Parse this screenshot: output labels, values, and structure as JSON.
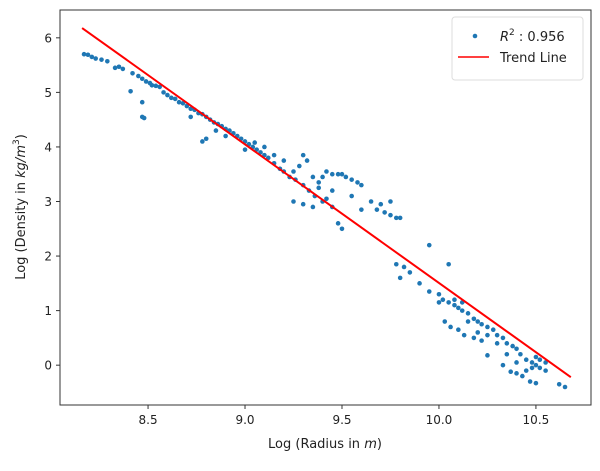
{
  "chart_data": {
    "type": "scatter",
    "title": "",
    "xlabel_prefix": "Log (Radius in ",
    "xlabel_var": "m",
    "xlabel_suffix": ")",
    "ylabel_prefix": "Log (Density in ",
    "ylabel_var": "kg/m",
    "ylabel_sup": "3",
    "ylabel_suffix": ")",
    "xlim": [
      8.046,
      10.784
    ],
    "ylim": [
      -0.73,
      6.51
    ],
    "xticks": [
      8.5,
      9.0,
      9.5,
      10.0,
      10.5
    ],
    "xtick_labels": [
      "8.5",
      "9.0",
      "9.5",
      "10.0",
      "10.5"
    ],
    "yticks": [
      0,
      1,
      2,
      3,
      4,
      5,
      6
    ],
    "ytick_labels": [
      "0",
      "1",
      "2",
      "3",
      "4",
      "5",
      "6"
    ],
    "grid": false,
    "legend": {
      "placement": "top-right",
      "scatter_label_var": "R",
      "scatter_label_sup": "2",
      "scatter_label_rest": " : 0.956",
      "line_label": "Trend Line"
    },
    "colors": {
      "points": "#1f77b4",
      "trend": "#ff0000"
    },
    "trend_line": {
      "x": [
        8.16,
        10.68
      ],
      "y": [
        6.18,
        -0.22
      ]
    },
    "points": [
      [
        8.17,
        5.7
      ],
      [
        8.19,
        5.69
      ],
      [
        8.21,
        5.65
      ],
      [
        8.23,
        5.62
      ],
      [
        8.26,
        5.6
      ],
      [
        8.29,
        5.57
      ],
      [
        8.33,
        5.45
      ],
      [
        8.35,
        5.47
      ],
      [
        8.37,
        5.43
      ],
      [
        8.42,
        5.35
      ],
      [
        8.45,
        5.3
      ],
      [
        8.47,
        5.25
      ],
      [
        8.49,
        5.2
      ],
      [
        8.51,
        5.17
      ],
      [
        8.52,
        5.13
      ],
      [
        8.54,
        5.12
      ],
      [
        8.56,
        5.1
      ],
      [
        8.41,
        5.02
      ],
      [
        8.47,
        4.82
      ],
      [
        8.47,
        4.55
      ],
      [
        8.48,
        4.53
      ],
      [
        8.58,
        5.0
      ],
      [
        8.6,
        4.95
      ],
      [
        8.62,
        4.9
      ],
      [
        8.64,
        4.88
      ],
      [
        8.66,
        4.82
      ],
      [
        8.68,
        4.8
      ],
      [
        8.7,
        4.75
      ],
      [
        8.72,
        4.7
      ],
      [
        8.74,
        4.68
      ],
      [
        8.76,
        4.62
      ],
      [
        8.78,
        4.6
      ],
      [
        8.8,
        4.55
      ],
      [
        8.82,
        4.5
      ],
      [
        8.84,
        4.45
      ],
      [
        8.86,
        4.42
      ],
      [
        8.88,
        4.38
      ],
      [
        8.9,
        4.33
      ],
      [
        8.92,
        4.3
      ],
      [
        8.94,
        4.25
      ],
      [
        8.96,
        4.2
      ],
      [
        8.98,
        4.15
      ],
      [
        9.0,
        4.1
      ],
      [
        9.02,
        4.05
      ],
      [
        9.04,
        4.0
      ],
      [
        9.06,
        3.95
      ],
      [
        9.08,
        3.9
      ],
      [
        9.1,
        3.85
      ],
      [
        9.12,
        3.8
      ],
      [
        9.15,
        3.7
      ],
      [
        9.18,
        3.6
      ],
      [
        9.2,
        3.55
      ],
      [
        9.23,
        3.45
      ],
      [
        9.26,
        3.4
      ],
      [
        9.3,
        3.3
      ],
      [
        9.33,
        3.2
      ],
      [
        9.36,
        3.1
      ],
      [
        9.4,
        3.0
      ],
      [
        8.8,
        4.15
      ],
      [
        8.78,
        4.1
      ],
      [
        8.72,
        4.55
      ],
      [
        8.85,
        4.3
      ],
      [
        8.9,
        4.2
      ],
      [
        9.0,
        3.95
      ],
      [
        9.05,
        4.08
      ],
      [
        9.1,
        4.0
      ],
      [
        9.15,
        3.85
      ],
      [
        9.2,
        3.75
      ],
      [
        9.25,
        3.55
      ],
      [
        9.3,
        3.85
      ],
      [
        9.32,
        3.75
      ],
      [
        9.28,
        3.65
      ],
      [
        9.35,
        3.45
      ],
      [
        9.38,
        3.35
      ],
      [
        9.4,
        3.45
      ],
      [
        9.42,
        3.55
      ],
      [
        9.45,
        3.5
      ],
      [
        9.48,
        3.5
      ],
      [
        9.5,
        3.5
      ],
      [
        9.52,
        3.45
      ],
      [
        9.55,
        3.4
      ],
      [
        9.58,
        3.35
      ],
      [
        9.6,
        3.3
      ],
      [
        9.38,
        3.25
      ],
      [
        9.35,
        2.9
      ],
      [
        9.42,
        3.05
      ],
      [
        9.45,
        2.9
      ],
      [
        9.48,
        2.6
      ],
      [
        9.5,
        2.5
      ],
      [
        9.25,
        3.0
      ],
      [
        9.3,
        2.95
      ],
      [
        9.45,
        3.2
      ],
      [
        9.55,
        3.1
      ],
      [
        9.6,
        2.85
      ],
      [
        9.65,
        3.0
      ],
      [
        9.7,
        2.95
      ],
      [
        9.72,
        2.8
      ],
      [
        9.75,
        2.75
      ],
      [
        9.78,
        2.7
      ],
      [
        9.8,
        2.7
      ],
      [
        9.75,
        3.0
      ],
      [
        9.68,
        2.85
      ],
      [
        9.95,
        2.2
      ],
      [
        10.05,
        1.85
      ],
      [
        9.78,
        1.85
      ],
      [
        9.82,
        1.8
      ],
      [
        9.8,
        1.6
      ],
      [
        9.85,
        1.7
      ],
      [
        9.9,
        1.5
      ],
      [
        9.95,
        1.35
      ],
      [
        10.0,
        1.3
      ],
      [
        10.02,
        1.2
      ],
      [
        10.05,
        1.15
      ],
      [
        10.08,
        1.1
      ],
      [
        10.1,
        1.05
      ],
      [
        10.12,
        1.0
      ],
      [
        10.15,
        0.95
      ],
      [
        10.18,
        0.85
      ],
      [
        10.2,
        0.8
      ],
      [
        10.22,
        0.75
      ],
      [
        10.25,
        0.7
      ],
      [
        10.28,
        0.65
      ],
      [
        10.3,
        0.55
      ],
      [
        10.33,
        0.5
      ],
      [
        10.35,
        0.4
      ],
      [
        10.38,
        0.35
      ],
      [
        10.4,
        0.3
      ],
      [
        10.42,
        0.2
      ],
      [
        10.45,
        0.1
      ],
      [
        10.48,
        0.05
      ],
      [
        10.5,
        0.0
      ],
      [
        10.52,
        -0.05
      ],
      [
        10.55,
        -0.1
      ],
      [
        10.0,
        1.15
      ],
      [
        10.03,
        0.8
      ],
      [
        10.06,
        0.7
      ],
      [
        10.1,
        0.65
      ],
      [
        10.13,
        0.55
      ],
      [
        10.18,
        0.5
      ],
      [
        10.22,
        0.45
      ],
      [
        10.25,
        0.18
      ],
      [
        10.3,
        0.4
      ],
      [
        10.33,
        0.0
      ],
      [
        10.37,
        -0.12
      ],
      [
        10.4,
        -0.15
      ],
      [
        10.43,
        -0.2
      ],
      [
        10.47,
        -0.3
      ],
      [
        10.5,
        -0.33
      ],
      [
        10.62,
        -0.35
      ],
      [
        10.65,
        -0.4
      ],
      [
        10.52,
        0.1
      ],
      [
        10.48,
        -0.05
      ],
      [
        10.5,
        0.15
      ],
      [
        10.55,
        0.05
      ],
      [
        10.08,
        1.2
      ],
      [
        10.12,
        1.15
      ],
      [
        10.15,
        0.8
      ],
      [
        10.2,
        0.6
      ],
      [
        10.25,
        0.55
      ],
      [
        10.35,
        0.2
      ],
      [
        10.4,
        0.05
      ],
      [
        10.45,
        -0.1
      ]
    ]
  }
}
